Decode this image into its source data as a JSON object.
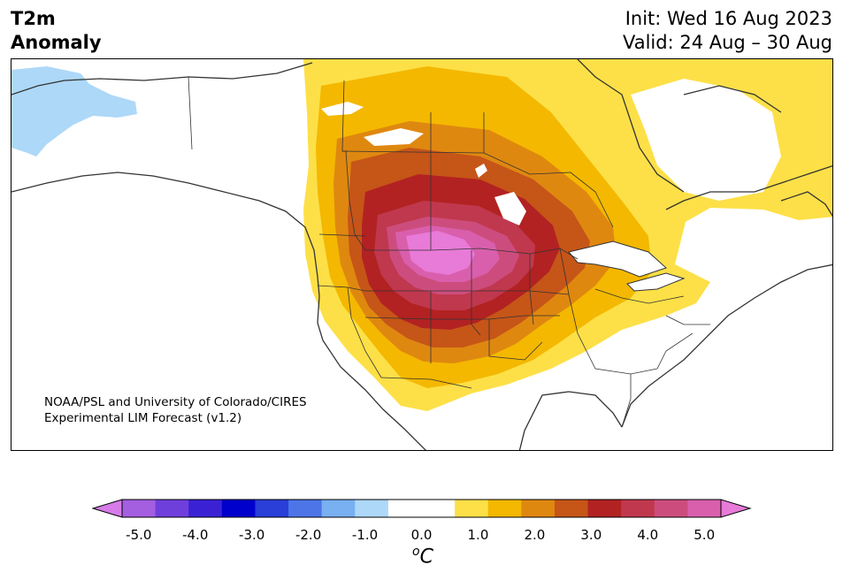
{
  "header": {
    "title_line1": "T2m",
    "title_line2": "Anomaly",
    "init": "Init: Wed 16 Aug 2023",
    "valid": "Valid: 24 Aug – 30 Aug"
  },
  "map": {
    "credit_line1": "NOAA/PSL and University of Colorado/CIRES",
    "credit_line2": "Experimental LIM Forecast (v1.2)"
  },
  "colorbar": {
    "units_base": "C",
    "units_sup": "o",
    "tick_labels": [
      "-5.0",
      "-4.0",
      "-3.0",
      "-2.0",
      "-1.0",
      "0.0",
      "1.0",
      "2.0",
      "3.0",
      "4.0",
      "5.0"
    ],
    "colors": [
      "#d67be8",
      "#a45ee0",
      "#6f3fdc",
      "#3a22d4",
      "#0000cc",
      "#2a3ed8",
      "#4d75e8",
      "#78b0f2",
      "#add8f8",
      "#ffffff",
      "#ffffff",
      "#fde047",
      "#f4b800",
      "#df8810",
      "#c65518",
      "#b22222",
      "#c0384e",
      "#cc4d7d",
      "#d95fad",
      "#e87ad8"
    ],
    "min": -5.0,
    "max": 5.0
  },
  "colors": {
    "yellow": "#fde047",
    "gold": "#f4b800",
    "orange": "#df8810",
    "burnt": "#c65518",
    "red": "#b22222",
    "crimson": "#c0384e",
    "rose": "#cc4d7d",
    "pink": "#d95fad",
    "magenta": "#e87ad8",
    "lightblue": "#add8f8"
  }
}
